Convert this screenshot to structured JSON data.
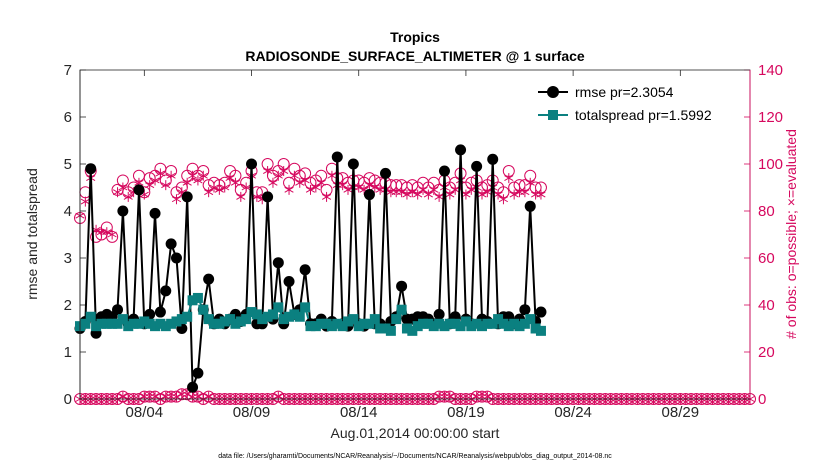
{
  "chart_data": {
    "type": "line",
    "title": "Tropics",
    "subtitle": "RADIOSONDE_SURFACE_ALTIMETER @ 1 surface",
    "xlabel": "Aug.01,2014 00:00:00 start",
    "ylabel": "rmse and totalspread",
    "y2label": "# of obs: o=possible; ×=evaluated",
    "footnote": "data file: /Users/gharamti/Documents/NCAR/Reanalysis/~/Documents/NCAR/Reanalysis/webpub/obs_diag_output_2014-08.nc",
    "xlim": [
      1,
      32.25
    ],
    "ylim": [
      0,
      7
    ],
    "y2lim": [
      0,
      140
    ],
    "xticks": [
      4,
      9,
      14,
      19,
      24,
      29
    ],
    "xtick_labels": [
      "08/04",
      "08/09",
      "08/14",
      "08/19",
      "08/24",
      "08/29"
    ],
    "yticks": [
      0,
      1,
      2,
      3,
      4,
      5,
      6,
      7
    ],
    "ytick_labels": [
      "0",
      "1",
      "2",
      "3",
      "4",
      "5",
      "6",
      "7"
    ],
    "y2ticks": [
      0,
      20,
      40,
      60,
      80,
      100,
      120,
      140
    ],
    "y2tick_labels": [
      "0",
      "20",
      "40",
      "60",
      "80",
      "100",
      "120",
      "140"
    ],
    "legend": {
      "position": "top-right",
      "entries": [
        "rmse pr=2.3054",
        "totalspread pr=1.5992"
      ]
    },
    "colors": {
      "rmse": "#000000",
      "spread": "#0b8080",
      "obs": "#d6085e"
    },
    "x_start": 1.0,
    "x_step": 0.25,
    "series": [
      {
        "name": "rmse pr=2.3054",
        "axis": "left",
        "values": [
          1.5,
          1.65,
          4.9,
          1.4,
          1.75,
          1.8,
          1.75,
          1.9,
          4.0,
          1.6,
          1.7,
          4.45,
          1.6,
          1.8,
          3.95,
          1.85,
          2.3,
          3.3,
          3.0,
          1.5,
          4.3,
          0.25,
          0.55,
          1.9,
          2.55,
          1.6,
          1.7,
          1.6,
          1.7,
          1.8,
          1.65,
          1.8,
          5.0,
          1.6,
          1.6,
          4.3,
          1.7,
          2.9,
          1.6,
          2.5,
          1.8,
          1.9,
          2.75,
          1.6,
          1.6,
          1.7,
          1.55,
          1.65,
          5.15,
          1.6,
          1.55,
          5.0,
          1.6,
          1.55,
          4.35,
          1.6,
          1.6,
          4.8,
          1.65,
          1.75,
          2.4,
          1.7,
          1.7,
          1.75,
          1.75,
          1.7,
          1.6,
          1.8,
          4.85,
          1.6,
          1.75,
          5.3,
          1.7,
          1.6,
          4.95,
          1.7,
          1.65,
          5.1,
          1.6,
          1.75,
          1.75,
          1.6,
          1.7,
          1.9,
          4.1,
          1.65,
          1.85
        ]
      },
      {
        "name": "totalspread pr=1.5992",
        "axis": "left",
        "values": [
          1.55,
          1.6,
          1.75,
          1.55,
          1.6,
          1.6,
          1.6,
          1.6,
          1.7,
          1.55,
          1.6,
          1.6,
          1.65,
          1.6,
          1.55,
          1.6,
          1.55,
          1.6,
          1.65,
          1.7,
          1.75,
          2.1,
          2.15,
          1.9,
          1.7,
          1.6,
          1.6,
          1.65,
          1.7,
          1.6,
          1.65,
          1.7,
          1.85,
          1.8,
          1.7,
          1.75,
          1.8,
          1.95,
          1.7,
          1.75,
          1.8,
          1.75,
          1.95,
          1.55,
          1.55,
          1.6,
          1.6,
          1.55,
          1.6,
          1.55,
          1.65,
          1.7,
          1.55,
          1.6,
          1.6,
          1.7,
          1.5,
          1.5,
          1.45,
          1.7,
          1.9,
          1.5,
          1.45,
          1.55,
          1.6,
          1.6,
          1.55,
          1.6,
          1.55,
          1.6,
          1.6,
          1.55,
          1.65,
          1.55,
          1.6,
          1.55,
          1.6,
          1.6,
          1.7,
          1.6,
          1.55,
          1.6,
          1.55,
          1.6,
          1.7,
          1.5,
          1.45
        ]
      },
      {
        "name": "possible",
        "axis": "right",
        "marker": "circle",
        "values": [
          77,
          88,
          97,
          69,
          70,
          73,
          69,
          89,
          93,
          88,
          90,
          95,
          88,
          94,
          95,
          98,
          93,
          97,
          88,
          90,
          95,
          98,
          95,
          97,
          91,
          92,
          91,
          92,
          97,
          95,
          89,
          92,
          97,
          88,
          88,
          100,
          95,
          97,
          100,
          92,
          98,
          95,
          96,
          92,
          93,
          95,
          89,
          98,
          94,
          94,
          92,
          93,
          93,
          92,
          94,
          93,
          92,
          92,
          91,
          91,
          91,
          90,
          91,
          90,
          92,
          90,
          92,
          89,
          93,
          90,
          92,
          96,
          90,
          92,
          93,
          90,
          91,
          93,
          90,
          88,
          97,
          90,
          91,
          91,
          95,
          90,
          90
        ]
      },
      {
        "name": "evaluated",
        "axis": "right",
        "marker": "star",
        "values": [
          78,
          84,
          94,
          72,
          71,
          71,
          70,
          88,
          90,
          86,
          88,
          92,
          87,
          91,
          93,
          96,
          91,
          95,
          85,
          88,
          92,
          95,
          93,
          95,
          88,
          90,
          89,
          90,
          94,
          92,
          86,
          90,
          95,
          86,
          85,
          97,
          92,
          95,
          97,
          89,
          95,
          92,
          93,
          89,
          90,
          92,
          86,
          95,
          91,
          91,
          89,
          90,
          90,
          89,
          91,
          90,
          89,
          89,
          88,
          88,
          88,
          87,
          88,
          87,
          89,
          87,
          89,
          86,
          90,
          87,
          89,
          93,
          87,
          89,
          90,
          87,
          88,
          90,
          87,
          85,
          94,
          87,
          88,
          88,
          92,
          87,
          87
        ]
      },
      {
        "name": "possible-bottom",
        "axis": "right",
        "marker": "circle",
        "values": [
          0,
          0,
          0,
          0,
          0,
          0,
          0,
          0,
          1,
          0,
          0,
          0,
          1,
          1,
          1,
          0,
          1,
          1,
          1,
          2,
          2,
          1,
          1,
          0,
          1,
          0,
          0,
          0,
          0,
          0,
          0,
          0,
          0,
          0,
          0,
          0,
          0,
          1,
          0,
          0,
          0,
          0,
          0,
          0,
          0,
          0,
          0,
          0,
          0,
          0,
          0,
          0,
          0,
          0,
          0,
          0,
          0,
          0,
          0,
          0,
          0,
          0,
          0,
          0,
          0,
          0,
          0,
          1,
          1,
          1,
          0,
          0,
          0,
          0,
          1,
          1,
          1,
          0,
          0,
          0,
          0,
          0,
          0,
          0,
          0,
          0,
          0,
          0,
          0,
          0,
          0,
          0,
          0,
          0,
          0,
          0,
          0,
          0,
          0,
          0,
          0,
          0,
          0,
          0,
          0,
          0,
          0,
          0,
          0,
          0,
          0,
          0,
          0,
          0,
          0,
          0,
          0,
          0,
          0,
          0,
          0,
          0,
          0,
          0,
          0,
          0
        ]
      },
      {
        "name": "evaluated-bottom",
        "axis": "right",
        "marker": "star",
        "values": [
          0,
          0,
          0,
          0,
          0,
          0,
          0,
          0,
          1,
          0,
          0,
          0,
          1,
          1,
          1,
          0,
          1,
          1,
          1,
          2,
          2,
          1,
          1,
          0,
          1,
          0,
          0,
          0,
          0,
          0,
          0,
          0,
          0,
          0,
          0,
          0,
          0,
          1,
          0,
          0,
          0,
          0,
          0,
          0,
          0,
          0,
          0,
          0,
          0,
          0,
          0,
          0,
          0,
          0,
          0,
          0,
          0,
          0,
          0,
          0,
          0,
          0,
          0,
          0,
          0,
          0,
          0,
          1,
          1,
          1,
          0,
          0,
          0,
          0,
          1,
          1,
          1,
          0,
          0,
          0,
          0,
          0,
          0,
          0,
          0,
          0,
          0,
          0,
          0,
          0,
          0,
          0,
          0,
          0,
          0,
          0,
          0,
          0,
          0,
          0,
          0,
          0,
          0,
          0,
          0,
          0,
          0,
          0,
          0,
          0,
          0,
          0,
          0,
          0,
          0,
          0,
          0,
          0,
          0,
          0,
          0,
          0,
          0,
          0,
          0,
          0
        ]
      }
    ]
  }
}
